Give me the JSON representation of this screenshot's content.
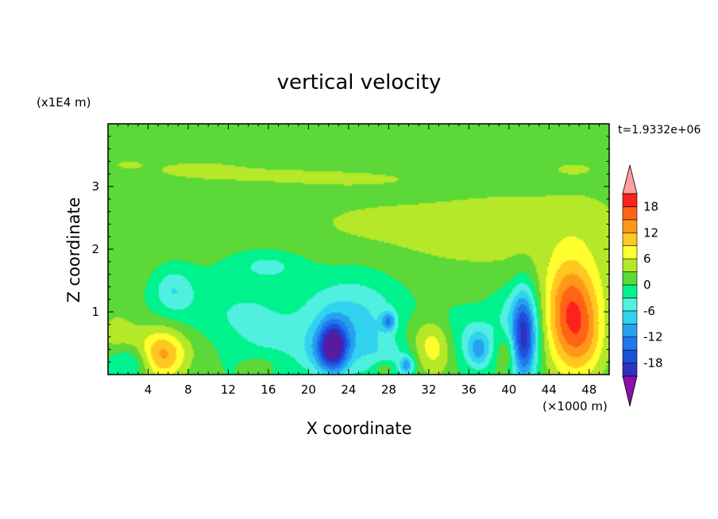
{
  "chart_data": {
    "type": "heatmap",
    "title": "vertical velocity",
    "time_label": "t=1.9332e+06",
    "xlabel": "X coordinate",
    "ylabel": "Z coordinate",
    "x_unit": "(×1000 m)",
    "y_unit": "(x1E4 m)",
    "xlim": [
      0,
      50
    ],
    "ylim": [
      0,
      4
    ],
    "x_ticks": [
      4,
      8,
      12,
      16,
      20,
      24,
      28,
      32,
      36,
      40,
      44,
      48
    ],
    "y_ticks": [
      1,
      2,
      3
    ],
    "colorbar": {
      "labels": [
        "18",
        "12",
        "6",
        "0",
        "-6",
        "-12",
        "-18"
      ],
      "label_values": [
        18,
        12,
        6,
        0,
        -6,
        -12,
        -18
      ],
      "levels": [
        -21,
        -18,
        -15,
        -12,
        -9,
        -6,
        -3,
        0,
        3,
        6,
        9,
        12,
        15,
        18,
        21
      ],
      "colors": [
        "#5a1aa0",
        "#3030c0",
        "#1e50dc",
        "#1e78f0",
        "#28a0f0",
        "#30d2f0",
        "#50f0e0",
        "#00f28c",
        "#5cd838",
        "#b4e828",
        "#ffff30",
        "#ffc820",
        "#ff9818",
        "#ff6414",
        "#ff2020",
        "#ee1818"
      ],
      "over_color": "#ff9e9e",
      "under_color": "#8a10a8"
    },
    "base_value": 1,
    "features": [
      {
        "x": 25,
        "z": 2.4,
        "sx": 7,
        "sz": 0.4,
        "w": 2
      },
      {
        "x": 41,
        "z": 2.5,
        "sx": 7,
        "sz": 0.45,
        "w": 2
      },
      {
        "x": 38,
        "z": 2.0,
        "sx": 8,
        "sz": 0.5,
        "w": 1.5
      },
      {
        "x": 48,
        "z": 2.3,
        "sx": 3,
        "sz": 0.5,
        "w": 1.5
      },
      {
        "x": 3,
        "z": 2.0,
        "sx": 3,
        "sz": 0.6,
        "w": 0.8
      },
      {
        "x": 9,
        "z": 3.28,
        "sx": 3.5,
        "sz": 0.1,
        "w": 3
      },
      {
        "x": 16,
        "z": 3.18,
        "sx": 5,
        "sz": 0.08,
        "w": 3
      },
      {
        "x": 24,
        "z": 3.12,
        "sx": 4,
        "sz": 0.07,
        "w": 3
      },
      {
        "x": 2,
        "z": 3.35,
        "sx": 1.2,
        "sz": 0.06,
        "w": 2.5
      },
      {
        "x": 46.5,
        "z": 3.28,
        "sx": 1.5,
        "sz": 0.07,
        "w": 2.5
      },
      {
        "x": 46,
        "z": 0.85,
        "sx": 1.6,
        "sz": 0.6,
        "w": 14
      },
      {
        "x": 48,
        "z": 0.6,
        "sx": 1.3,
        "sz": 0.45,
        "w": 6
      },
      {
        "x": 47,
        "z": 1.35,
        "sx": 2.4,
        "sz": 0.45,
        "w": 4
      },
      {
        "x": 5.5,
        "z": 0.3,
        "sx": 1.5,
        "sz": 0.28,
        "w": 10
      },
      {
        "x": 8,
        "z": 0.45,
        "sx": 3.5,
        "sz": 0.3,
        "w": 3
      },
      {
        "x": 2.5,
        "z": 0.45,
        "sx": 2.5,
        "sz": 0.25,
        "w": 2
      },
      {
        "x": 1,
        "z": 0.7,
        "sx": 1.5,
        "sz": 0.3,
        "w": 2.5
      },
      {
        "x": 32.5,
        "z": 0.4,
        "sx": 1.5,
        "sz": 0.3,
        "w": 9
      },
      {
        "x": 30.5,
        "z": 0.6,
        "sx": 2.5,
        "sz": 0.25,
        "w": 3
      },
      {
        "x": 15,
        "z": 0.15,
        "sx": 1.3,
        "sz": 0.12,
        "w": 3
      },
      {
        "x": 39.8,
        "z": 0.35,
        "sx": 0.7,
        "sz": 0.2,
        "w": 5
      },
      {
        "x": 27.5,
        "z": 0.1,
        "sx": 0.7,
        "sz": 0.08,
        "w": 5
      },
      {
        "x": 18,
        "z": 1.05,
        "sx": 2.2,
        "sz": 0.25,
        "w": 1.5
      },
      {
        "x": 22.5,
        "z": 0.45,
        "sx": 1,
        "sz": 0.28,
        "w": -18
      },
      {
        "x": 21.5,
        "z": 0.35,
        "sx": 1.5,
        "sz": 0.25,
        "w": -5
      },
      {
        "x": 41.5,
        "z": 0.6,
        "sx": 0.9,
        "sz": 0.5,
        "w": -20
      },
      {
        "x": 29.8,
        "z": 0.15,
        "sx": 0.5,
        "sz": 0.1,
        "w": -10
      },
      {
        "x": 28,
        "z": 0.85,
        "sx": 0.5,
        "sz": 0.1,
        "w": -10
      },
      {
        "x": 37,
        "z": 0.4,
        "sx": 0.8,
        "sz": 0.2,
        "w": -8
      },
      {
        "x": 6.5,
        "z": 1.35,
        "sx": 1.4,
        "sz": 0.25,
        "w": -6
      },
      {
        "x": 16,
        "z": 1.75,
        "sx": 2.2,
        "sz": 0.15,
        "w": -4
      },
      {
        "x": 16,
        "z": 0.8,
        "sx": 7,
        "sz": 0.55,
        "w": -5.5
      },
      {
        "x": 25,
        "z": 0.9,
        "sx": 3,
        "sz": 0.5,
        "w": -5.5
      },
      {
        "x": 35.5,
        "z": 0.55,
        "sx": 3,
        "sz": 0.35,
        "w": -5
      },
      {
        "x": 28,
        "z": 0.35,
        "sx": 3,
        "sz": 0.3,
        "w": -4
      },
      {
        "x": 2,
        "z": 0.2,
        "sx": 1.5,
        "sz": 0.2,
        "w": -6
      },
      {
        "x": 40,
        "z": 1.05,
        "sx": 1.5,
        "sz": 0.3,
        "w": -3
      }
    ]
  }
}
